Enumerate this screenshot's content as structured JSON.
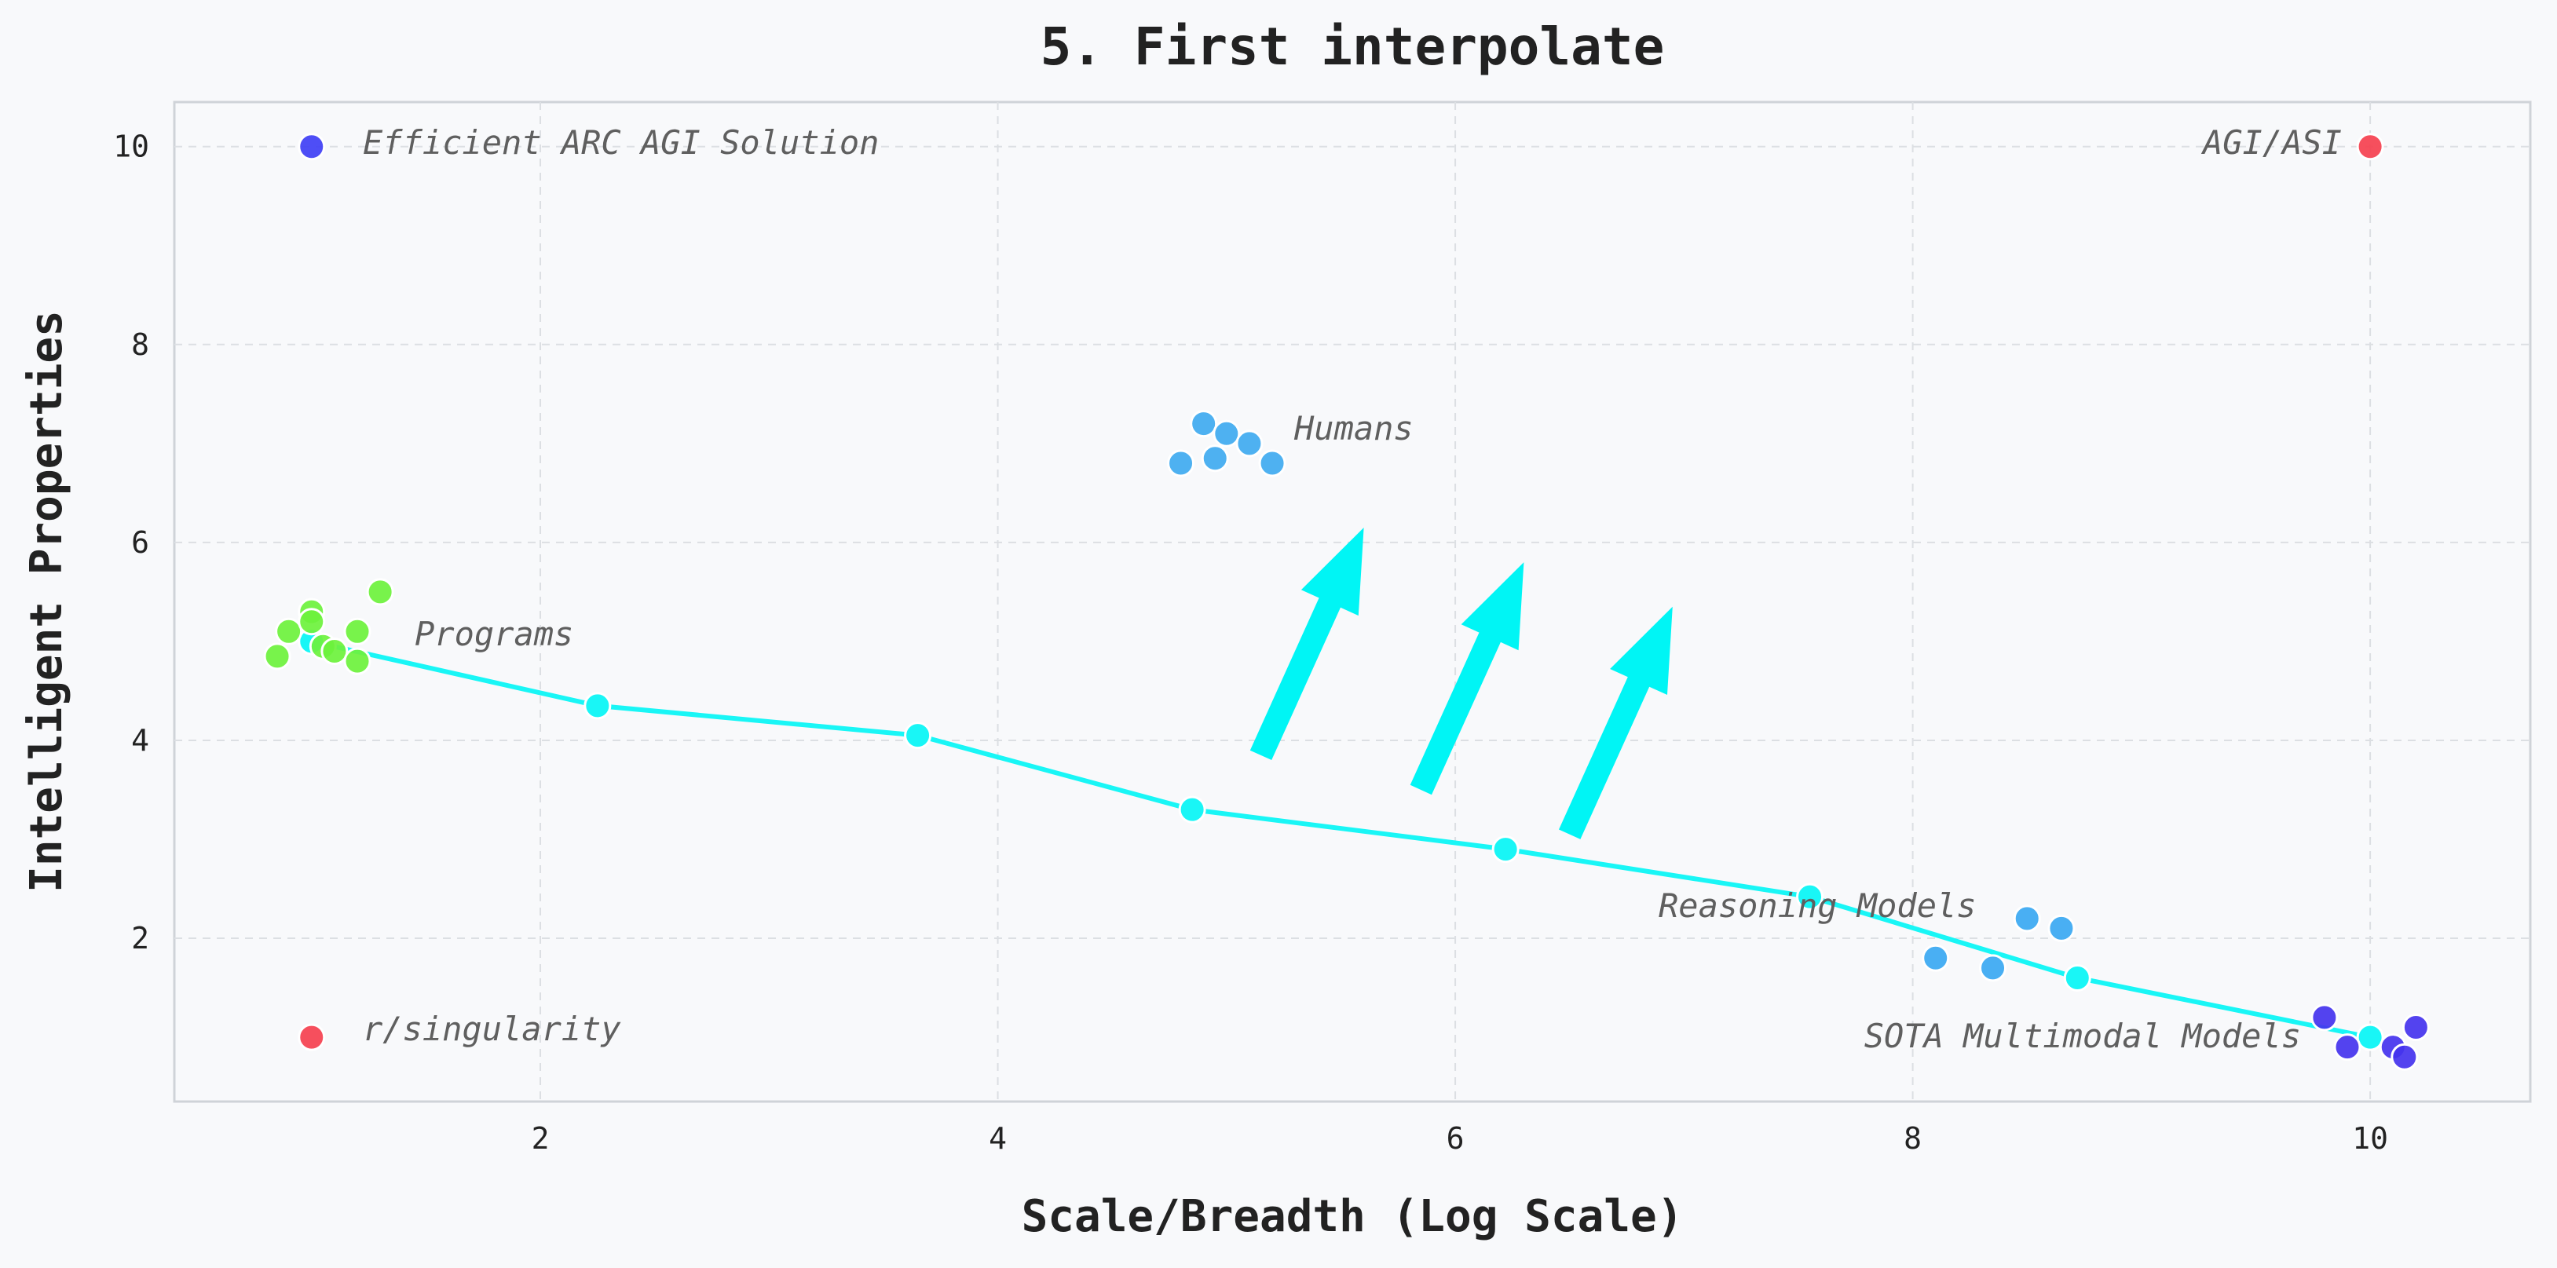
{
  "chart_data": {
    "type": "scatter",
    "title": "5. First interpolate",
    "xlabel": "Scale/Breadth (Log Scale)",
    "ylabel": "Intelligent Properties",
    "xlim": [
      0.4,
      10.7
    ],
    "ylim": [
      0.35,
      10.45
    ],
    "xticks": [
      2,
      4,
      6,
      8,
      10
    ],
    "yticks": [
      2,
      4,
      6,
      8,
      10
    ],
    "grid": true,
    "clusters": [
      {
        "label": "Efficient ARC AGI Solution",
        "color": "#3f3ff5",
        "points": [
          [
            1.0,
            10.0
          ]
        ]
      },
      {
        "label": "AGI/ASI",
        "color": "#f5404f",
        "points": [
          [
            10.0,
            10.0
          ]
        ]
      },
      {
        "label": "r/singularity",
        "color": "#f5404f",
        "points": [
          [
            1.0,
            1.0
          ]
        ]
      },
      {
        "label": "Humans",
        "color": "#3faaf0",
        "points": [
          [
            4.8,
            6.8
          ],
          [
            4.9,
            7.2
          ],
          [
            4.95,
            6.85
          ],
          [
            5.0,
            7.1
          ],
          [
            5.1,
            7.0
          ],
          [
            5.2,
            6.8
          ]
        ]
      },
      {
        "label": "Programs",
        "color": "#6cf23c",
        "points": [
          [
            0.85,
            4.85
          ],
          [
            0.9,
            5.1
          ],
          [
            1.0,
            5.3
          ],
          [
            1.0,
            5.2
          ],
          [
            1.05,
            4.95
          ],
          [
            1.1,
            4.9
          ],
          [
            1.2,
            5.1
          ],
          [
            1.2,
            4.8
          ],
          [
            1.3,
            5.5
          ]
        ]
      },
      {
        "label": "Reasoning Models",
        "color": "#3aa8f2",
        "points": [
          [
            8.1,
            1.8
          ],
          [
            8.35,
            1.7
          ],
          [
            8.5,
            2.2
          ],
          [
            8.65,
            2.1
          ]
        ]
      },
      {
        "label": "SOTA Multimodal Models",
        "color": "#4433ee",
        "points": [
          [
            9.8,
            1.2
          ],
          [
            9.9,
            0.9
          ],
          [
            10.1,
            0.9
          ],
          [
            10.15,
            0.8
          ],
          [
            10.2,
            1.1
          ]
        ]
      }
    ],
    "interpolation_line": {
      "color": "#19f6f6",
      "points": [
        [
          1.0,
          5.0
        ],
        [
          2.25,
          4.35
        ],
        [
          3.65,
          4.05
        ],
        [
          4.85,
          3.3
        ],
        [
          6.22,
          2.9
        ],
        [
          7.55,
          2.42
        ],
        [
          8.72,
          1.6
        ],
        [
          10.0,
          1.0
        ]
      ]
    },
    "arrows": {
      "color": "#00f5f5",
      "segments": [
        {
          "from": [
            5.15,
            3.85
          ],
          "to": [
            5.6,
            6.15
          ]
        },
        {
          "from": [
            5.85,
            3.5
          ],
          "to": [
            6.3,
            5.8
          ]
        },
        {
          "from": [
            6.5,
            3.05
          ],
          "to": [
            6.95,
            5.35
          ]
        }
      ]
    }
  }
}
